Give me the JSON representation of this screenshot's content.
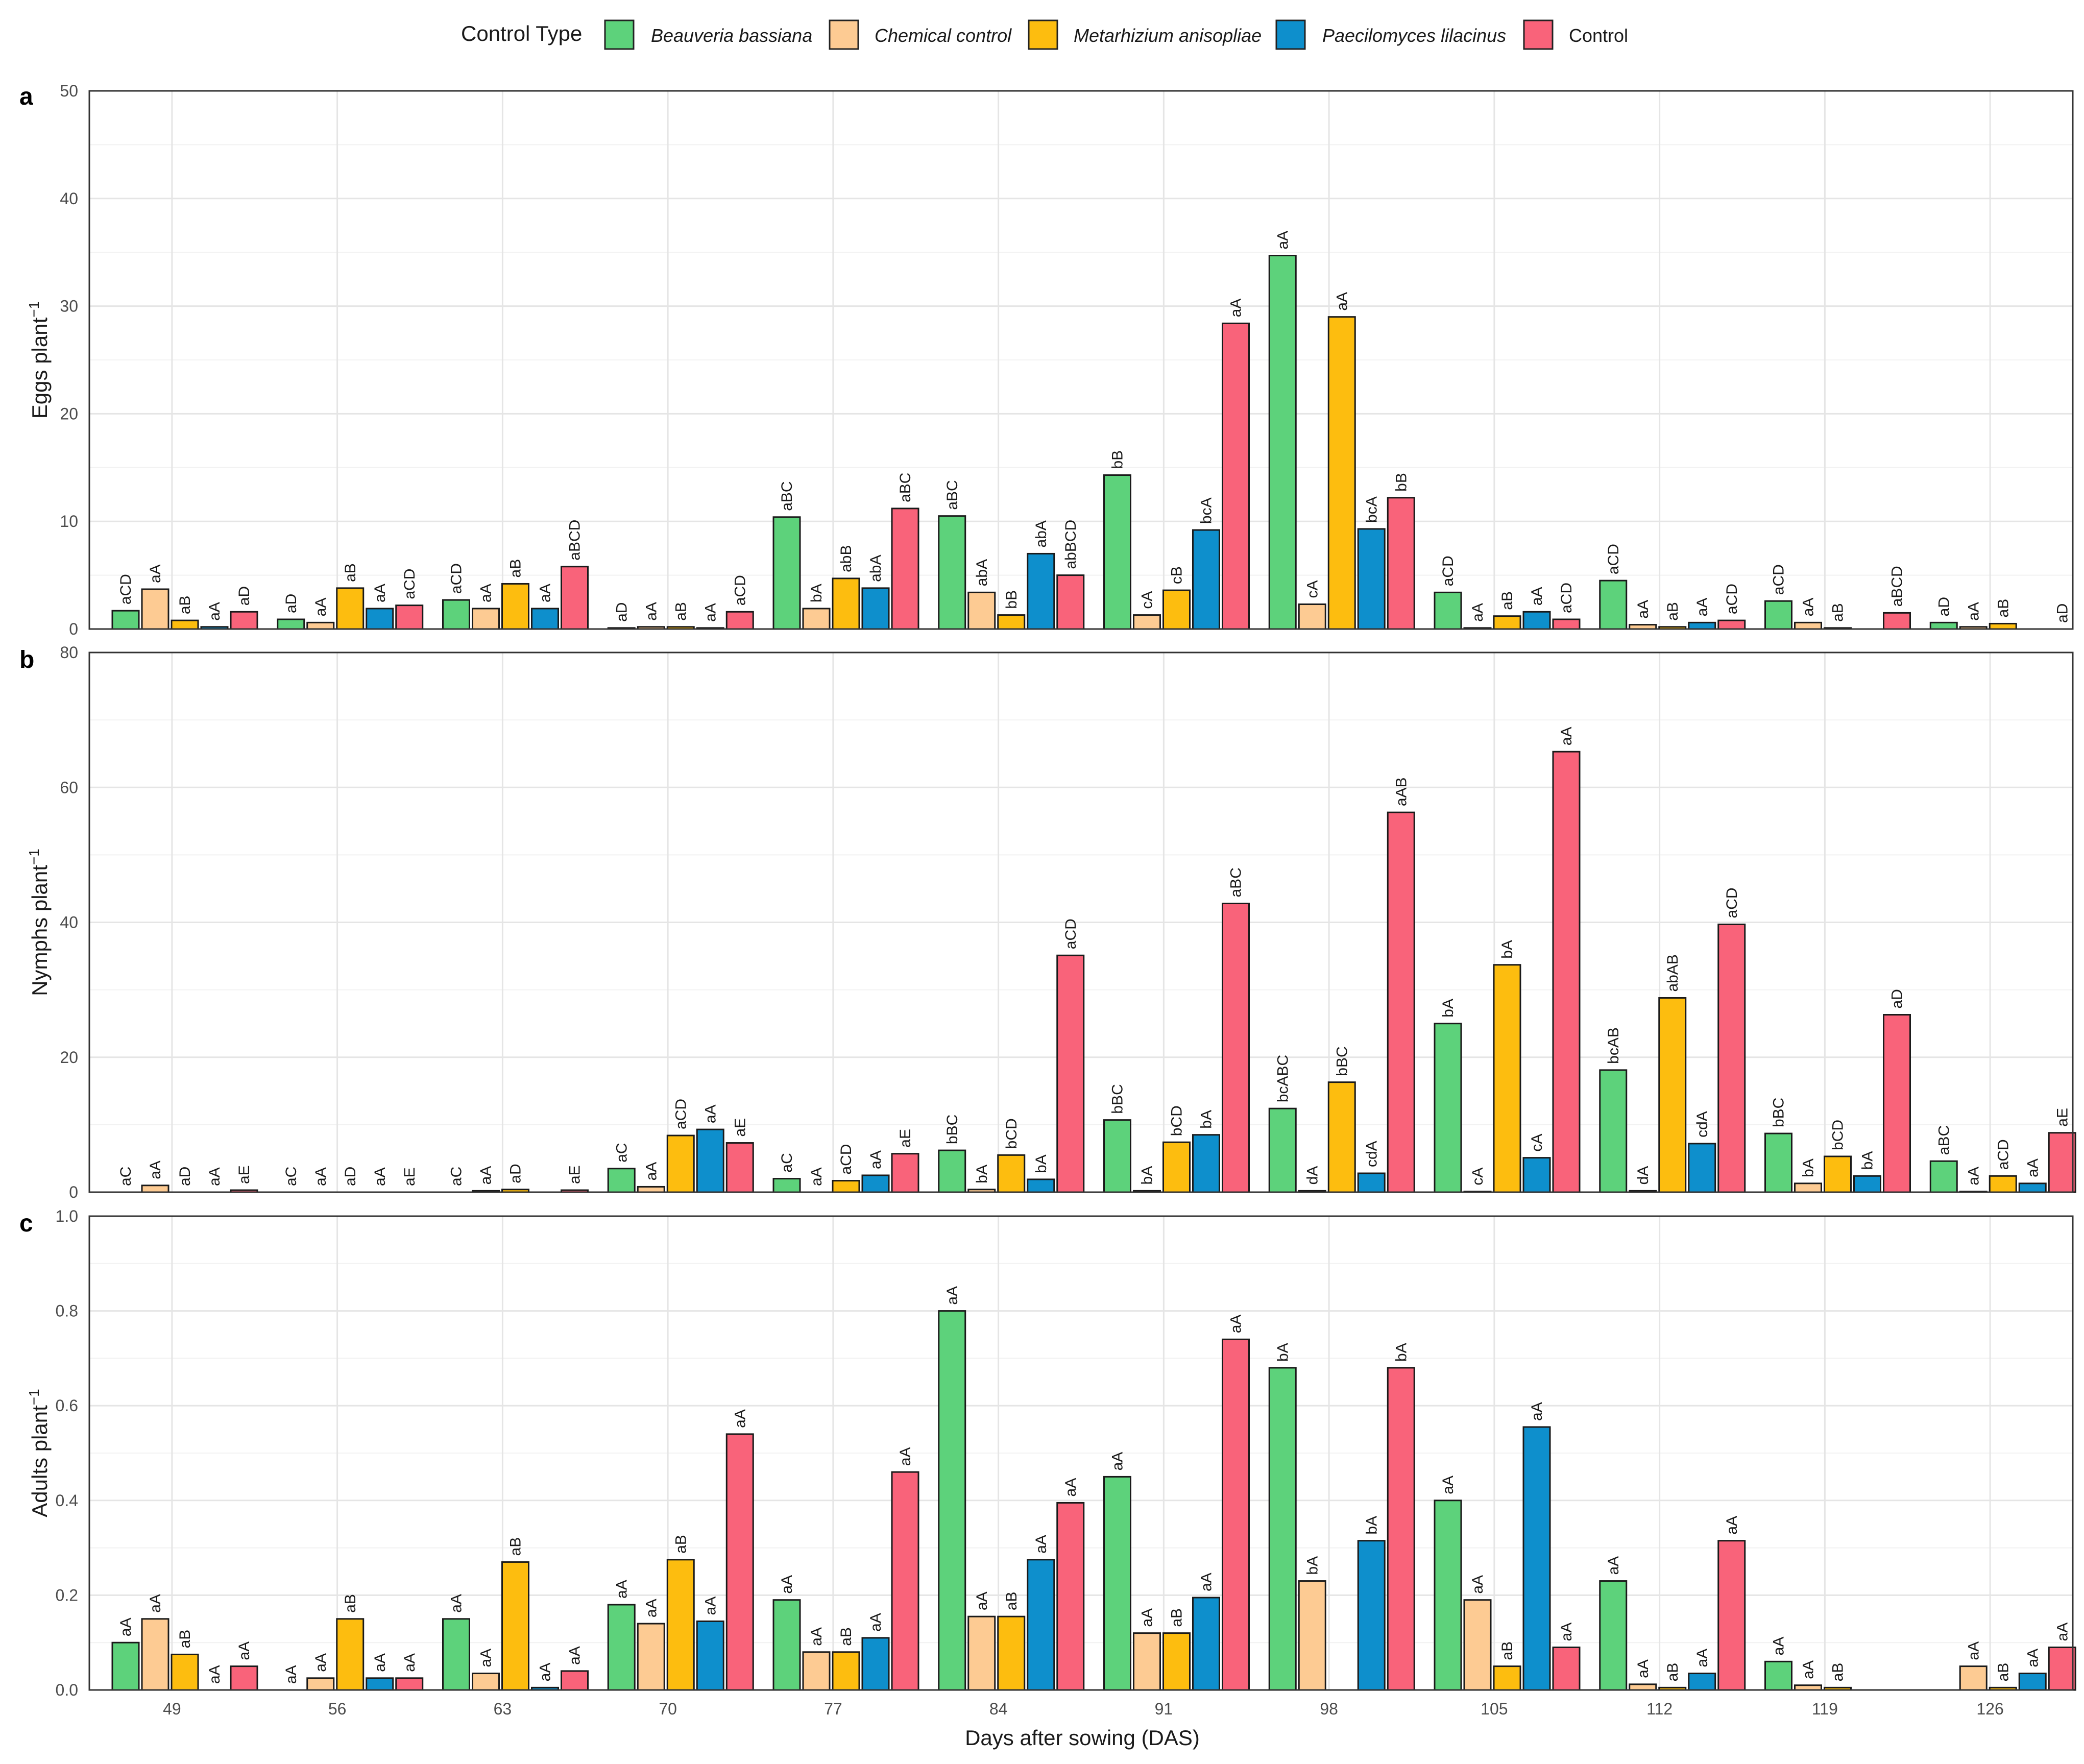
{
  "legend": {
    "title": "Control Type",
    "series_colors": [
      "#5dd27b",
      "#fdcb93",
      "#fdbd0f",
      "#0e8fcc",
      "#f9637a"
    ]
  },
  "xlabel": "Days after sowing (DAS)",
  "chart_data": [
    {
      "type": "bar",
      "panel": "a",
      "ylabel": "Eggs plant",
      "ylabel_sup": "−1",
      "ylim": [
        0,
        50
      ],
      "yticks": [
        0,
        10,
        20,
        30,
        40,
        50
      ],
      "categories": [
        "49",
        "56",
        "63",
        "70",
        "77",
        "84",
        "91",
        "98",
        "105",
        "112",
        "119",
        "126"
      ],
      "series": [
        {
          "name": "Beauveria bassiana",
          "italic": true,
          "values": [
            1.7,
            0.9,
            2.7,
            0.1,
            10.4,
            10.5,
            14.3,
            34.7,
            3.4,
            4.5,
            2.6,
            0.6
          ],
          "labels": [
            "aCD",
            "aD",
            "aCD",
            "aD",
            "aBC",
            "aBC",
            "bB",
            "aA",
            "aCD",
            "aCD",
            "aCD",
            "aD"
          ]
        },
        {
          "name": "Chemical control",
          "italic": true,
          "values": [
            3.7,
            0.6,
            1.9,
            0.2,
            1.9,
            3.4,
            1.3,
            2.3,
            0.1,
            0.4,
            0.6,
            0.2
          ],
          "labels": [
            "aA",
            "aA",
            "aA",
            "aA",
            "bA",
            "abA",
            "cA",
            "cA",
            "aA",
            "aA",
            "aA",
            "aA"
          ]
        },
        {
          "name": "Metarhizium anisopliae",
          "italic": true,
          "values": [
            0.8,
            3.8,
            4.2,
            0.2,
            4.7,
            1.3,
            3.6,
            29.0,
            1.2,
            0.2,
            0.1,
            0.5
          ],
          "labels": [
            "aB",
            "aB",
            "aB",
            "aB",
            "abB",
            "bB",
            "cB",
            "aA",
            "aB",
            "aB",
            "aB",
            "aB"
          ]
        },
        {
          "name": "Paecilomyces lilacinus",
          "italic": true,
          "values": [
            0.2,
            1.9,
            1.9,
            0.1,
            3.8,
            7.0,
            9.2,
            9.3,
            1.6,
            0.6,
            0.0,
            0.0
          ],
          "labels": [
            "aA",
            "aA",
            "aA",
            "aA",
            "abA",
            "abA",
            "bcA",
            "bcA",
            "aA",
            "aA",
            "",
            ""
          ]
        },
        {
          "name": "Control",
          "italic": false,
          "values": [
            1.6,
            2.2,
            5.8,
            1.6,
            11.2,
            5.0,
            28.4,
            12.2,
            0.9,
            0.8,
            1.5,
            0.0
          ],
          "labels": [
            "aD",
            "aCD",
            "aBCD",
            "aCD",
            "aBC",
            "abBCD",
            "aA",
            "bB",
            "aCD",
            "aCD",
            "aBCD",
            "aD"
          ]
        }
      ]
    },
    {
      "type": "bar",
      "panel": "b",
      "ylabel": "Nymphs plant",
      "ylabel_sup": "−1",
      "ylim": [
        0,
        80
      ],
      "yticks": [
        0,
        20,
        40,
        60,
        80
      ],
      "categories": [
        "49",
        "56",
        "63",
        "70",
        "77",
        "84",
        "91",
        "98",
        "105",
        "112",
        "119",
        "126"
      ],
      "series": [
        {
          "name": "Beauveria bassiana",
          "values": [
            0.0,
            0.0,
            0.0,
            3.5,
            2.0,
            6.2,
            10.7,
            12.4,
            25.0,
            18.1,
            8.7,
            4.6
          ],
          "labels": [
            "aC",
            "aC",
            "aC",
            "aC",
            "aC",
            "bBC",
            "bBC",
            "bcABC",
            "bA",
            "bcAB",
            "bBC",
            "aBC"
          ]
        },
        {
          "name": "Chemical control",
          "values": [
            1.0,
            0.0,
            0.2,
            0.8,
            0.0,
            0.4,
            0.2,
            0.2,
            0.1,
            0.2,
            1.3,
            0.1
          ],
          "labels": [
            "aA",
            "aA",
            "aA",
            "aA",
            "aA",
            "bA",
            "bA",
            "dA",
            "cA",
            "dA",
            "bA",
            "aA"
          ]
        },
        {
          "name": "Metarhizium anisopliae",
          "values": [
            0.0,
            0.0,
            0.4,
            8.4,
            1.7,
            5.5,
            7.4,
            16.3,
            33.7,
            28.8,
            5.3,
            2.4
          ],
          "labels": [
            "aD",
            "aD",
            "aD",
            "aCD",
            "aCD",
            "bCD",
            "bCD",
            "bBC",
            "bA",
            "abAB",
            "bCD",
            "aCD"
          ]
        },
        {
          "name": "Paecilomyces lilacinus",
          "values": [
            0.0,
            0.0,
            0.0,
            9.3,
            2.5,
            1.9,
            8.5,
            2.8,
            5.1,
            7.2,
            2.4,
            1.3
          ],
          "labels": [
            "aA",
            "aA",
            "",
            "aA",
            "aA",
            "bA",
            "bA",
            "cdA",
            "cA",
            "cdA",
            "bA",
            "aA"
          ]
        },
        {
          "name": "Control",
          "values": [
            0.3,
            0.0,
            0.3,
            7.3,
            5.7,
            35.1,
            42.8,
            56.3,
            65.3,
            39.7,
            26.3,
            8.8
          ],
          "labels": [
            "aE",
            "aE",
            "aE",
            "aE",
            "aE",
            "aCD",
            "aBC",
            "aAB",
            "aA",
            "aCD",
            "aD",
            "aE"
          ]
        }
      ]
    },
    {
      "type": "bar",
      "panel": "c",
      "ylabel": "Adults plant",
      "ylabel_sup": "−1",
      "ylim": [
        0,
        1.0
      ],
      "yticks": [
        0.0,
        0.2,
        0.4,
        0.6,
        0.8,
        1.0
      ],
      "categories": [
        "49",
        "56",
        "63",
        "70",
        "77",
        "84",
        "91",
        "98",
        "105",
        "112",
        "119",
        "126"
      ],
      "series": [
        {
          "name": "Beauveria bassiana",
          "values": [
            0.1,
            0.0,
            0.15,
            0.18,
            0.19,
            0.8,
            0.45,
            0.68,
            0.4,
            0.23,
            0.06,
            0.0
          ],
          "labels": [
            "aA",
            "aA",
            "aA",
            "aA",
            "aA",
            "aA",
            "aA",
            "bA",
            "aA",
            "aA",
            "aA",
            ""
          ]
        },
        {
          "name": "Chemical control",
          "values": [
            0.15,
            0.025,
            0.035,
            0.14,
            0.08,
            0.155,
            0.12,
            0.23,
            0.19,
            0.012,
            0.01,
            0.05
          ],
          "labels": [
            "aA",
            "aA",
            "aA",
            "aA",
            "aA",
            "aA",
            "aA",
            "bA",
            "aA",
            "aA",
            "aA",
            "aA"
          ]
        },
        {
          "name": "Metarhizium anisopliae",
          "values": [
            0.075,
            0.15,
            0.27,
            0.275,
            0.08,
            0.155,
            0.12,
            0.0,
            0.05,
            0.005,
            0.005,
            0.005
          ],
          "labels": [
            "aB",
            "aB",
            "aB",
            "aB",
            "aB",
            "aB",
            "aB",
            "",
            "aB",
            "aB",
            "aB",
            "aB"
          ]
        },
        {
          "name": "Paecilomyces lilacinus",
          "values": [
            0.0,
            0.025,
            0.005,
            0.145,
            0.11,
            0.275,
            0.195,
            0.315,
            0.555,
            0.035,
            0.0,
            0.035
          ],
          "labels": [
            "aA",
            "aA",
            "aA",
            "aA",
            "aA",
            "aA",
            "aA",
            "bA",
            "aA",
            "aA",
            "",
            "aA"
          ]
        },
        {
          "name": "Control",
          "values": [
            0.05,
            0.025,
            0.04,
            0.54,
            0.46,
            0.395,
            0.74,
            0.68,
            0.09,
            0.315,
            0.0,
            0.09
          ],
          "labels": [
            "aA",
            "aA",
            "aA",
            "aA",
            "aA",
            "aA",
            "aA",
            "bA",
            "aA",
            "aA",
            "",
            "aA"
          ]
        }
      ]
    }
  ]
}
